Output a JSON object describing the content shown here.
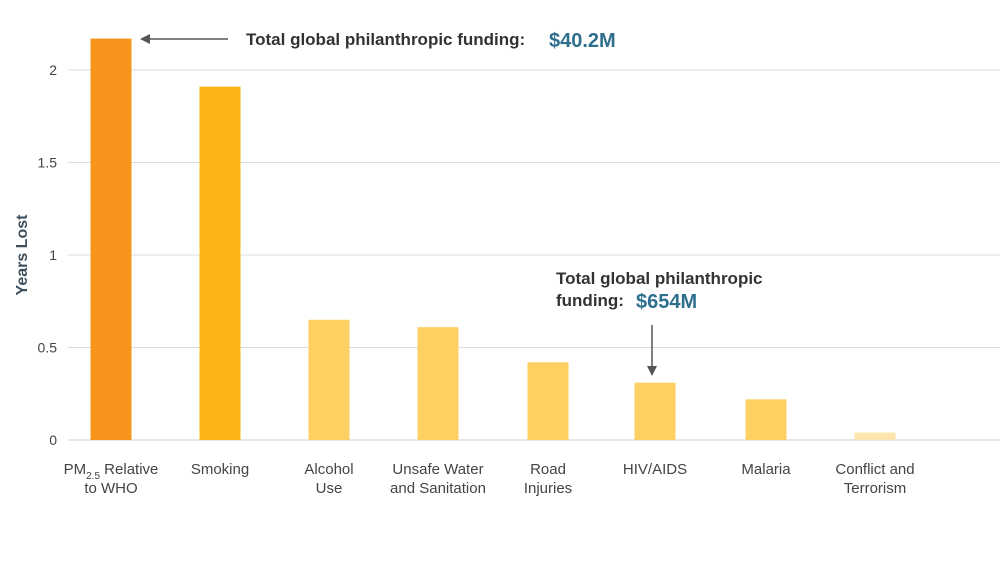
{
  "chart_data": {
    "type": "bar",
    "ylabel": "Years Lost",
    "ylim": [
      0,
      2.2
    ],
    "yticks": [
      {
        "value": 0,
        "label": "0"
      },
      {
        "value": 0.5,
        "label": "0.5"
      },
      {
        "value": 1,
        "label": "1"
      },
      {
        "value": 1.5,
        "label": "1.5"
      },
      {
        "value": 2,
        "label": "2"
      }
    ],
    "grid": true,
    "categories": [
      {
        "lines": [
          "PM",
          "Relative",
          "to WHO"
        ],
        "subscript": "2.5"
      },
      {
        "lines": [
          "Smoking"
        ]
      },
      {
        "lines": [
          "Alcohol",
          "Use"
        ]
      },
      {
        "lines": [
          "Unsafe Water",
          "and Sanitation"
        ]
      },
      {
        "lines": [
          "Road",
          "Injuries"
        ]
      },
      {
        "lines": [
          "HIV/AIDS"
        ]
      },
      {
        "lines": [
          "Malaria"
        ]
      },
      {
        "lines": [
          "Conflict and",
          "Terrorism"
        ]
      }
    ],
    "values": [
      2.17,
      1.91,
      0.65,
      0.61,
      0.42,
      0.31,
      0.22,
      0.04
    ],
    "colors": [
      "#f7941d",
      "#fbb615",
      "#fed061",
      "#fed061",
      "#fed061",
      "#fed061",
      "#fed061",
      "#fee4ad"
    ],
    "annotations": [
      {
        "text": "Total global philanthropic funding:",
        "value": "$40.2M",
        "target_index": 0
      },
      {
        "text_lines": [
          "Total global philanthropic",
          "funding:"
        ],
        "value": "$654M",
        "target_index": 5
      }
    ]
  },
  "colors": {
    "grid": "#dddddd",
    "axis": "#cccccc",
    "annotation_arrow": "#555555"
  }
}
